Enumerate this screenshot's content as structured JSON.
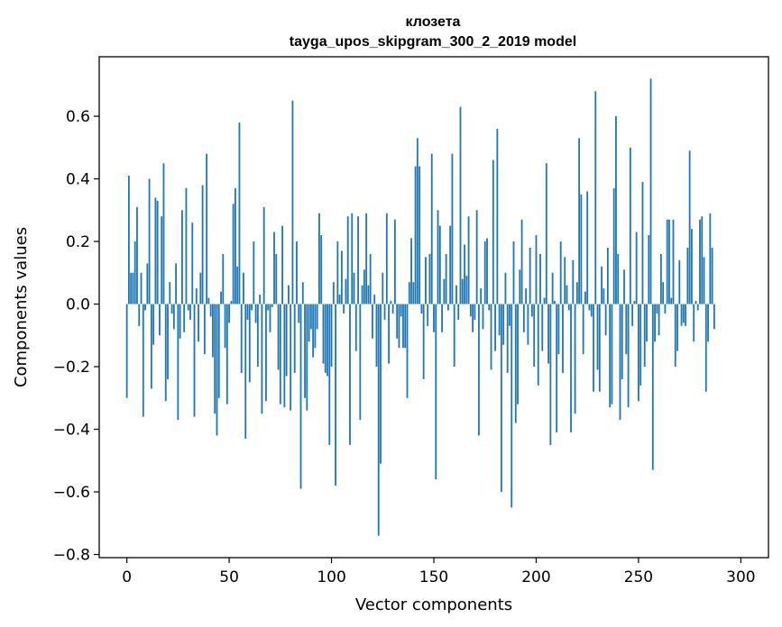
{
  "chart_data": {
    "type": "bar",
    "title": "клозета",
    "subtitle": "tayga_upos_skipgram_300_2_2019 model",
    "xlabel": "Vector components",
    "ylabel": "Components values",
    "xlim": [
      -13.5,
      313.5
    ],
    "ylim": [
      -0.81,
      0.79
    ],
    "xticks": [
      0,
      50,
      100,
      150,
      200,
      250,
      300
    ],
    "yticks": [
      -0.8,
      -0.6,
      -0.4,
      -0.2,
      0.0,
      0.2,
      0.4,
      0.6
    ],
    "ytick_labels": [
      "−0.8",
      "−0.6",
      "−0.4",
      "−0.2",
      "0.0",
      "0.2",
      "0.4",
      "0.6"
    ],
    "xtick_labels": [
      "0",
      "50",
      "100",
      "150",
      "200",
      "250",
      "300"
    ],
    "bar_color": "#1f77b4",
    "grid": false,
    "values": [
      -0.3,
      0.41,
      0.1,
      0.1,
      0.2,
      0.31,
      -0.07,
      0.1,
      -0.36,
      -0.02,
      0.13,
      0.4,
      -0.27,
      -0.13,
      0.34,
      0.33,
      -0.1,
      0.28,
      0.45,
      -0.31,
      -0.24,
      0.07,
      -0.03,
      -0.08,
      0.13,
      -0.37,
      -0.11,
      0.3,
      -0.09,
      0.37,
      -0.02,
      -0.05,
      0.26,
      -0.36,
      0.05,
      -0.12,
      0.1,
      0.38,
      -0.16,
      0.48,
      0.02,
      -0.04,
      -0.17,
      -0.35,
      -0.42,
      -0.3,
      0.04,
      0.16,
      -0.14,
      -0.32,
      -0.06,
      0.01,
      0.32,
      0.37,
      0.12,
      0.58,
      -0.22,
      0.1,
      -0.43,
      -0.05,
      -0.25,
      -0.02,
      0.2,
      -0.06,
      -0.2,
      0.03,
      -0.35,
      0.31,
      -0.31,
      -0.02,
      -0.09,
      -0.01,
      0.23,
      0.16,
      -0.21,
      -0.32,
      0.25,
      -0.33,
      -0.23,
      0.06,
      -0.34,
      0.65,
      -0.22,
      0.2,
      -0.06,
      -0.59,
      0.07,
      -0.3,
      -0.34,
      -0.12,
      -0.08,
      -0.17,
      -0.14,
      -0.08,
      0.29,
      0.22,
      -0.19,
      -0.22,
      -0.23,
      -0.45,
      -0.2,
      0.07,
      -0.58,
      0.2,
      0.03,
      0.17,
      -0.03,
      0.08,
      0.28,
      -0.45,
      0.29,
      0.1,
      -0.15,
      0.28,
      -0.37,
      0.06,
      0.11,
      0.29,
      0.06,
      0.16,
      -0.11,
      0.03,
      -0.2,
      -0.74,
      -0.51,
      0.1,
      -0.05,
      0.29,
      -0.19,
      0.01,
      -0.03,
      0.27,
      -0.11,
      -0.14,
      -0.04,
      -0.14,
      -0.14,
      -0.3,
      0.07,
      0.21,
      0.07,
      0.44,
      0.53,
      0.44,
      -0.03,
      -0.24,
      0.15,
      -0.07,
      0.16,
      0.48,
      -0.09,
      -0.56,
      0.3,
      0.25,
      -0.09,
      0.08,
      0.16,
      -0.02,
      0.25,
      0.48,
      -0.2,
      0.06,
      -0.05,
      0.63,
      0.08,
      0.19,
      0.09,
      0.28,
      -0.04,
      -0.09,
      -0.05,
      0.3,
      -0.42,
      0.05,
      -0.08,
      0.2,
      0.21,
      -0.02,
      -0.21,
      0.46,
      -0.15,
      0.56,
      -0.1,
      -0.6,
      -0.13,
      0.1,
      -0.22,
      -0.07,
      -0.65,
      0.2,
      -0.38,
      -0.32,
      0.11,
      0.27,
      -0.09,
      0.05,
      -0.13,
      0.18,
      -0.04,
      -0.2,
      0.22,
      -0.26,
      0.16,
      -0.15,
      0.02,
      0.45,
      -0.19,
      -0.45,
      0.1,
      0.01,
      -0.41,
      -0.16,
      0.2,
      -0.22,
      0.15,
      0.06,
      -0.02,
      -0.41,
      0.14,
      -0.35,
      0.07,
      0.53,
      0.35,
      -0.16,
      0.04,
      0.36,
      -0.02,
      -0.04,
      -0.28,
      0.68,
      -0.21,
      -0.28,
      0.12,
      0.05,
      -0.1,
      0.18,
      -0.33,
      -0.32,
      0.37,
      0.6,
      0.16,
      -0.37,
      -0.24,
      0.11,
      -0.16,
      -0.33,
      0.5,
      -0.07,
      0.01,
      0.23,
      -0.31,
      -0.26,
      0.39,
      -0.2,
      -0.12,
      0.22,
      0.72,
      -0.53,
      -0.12,
      -0.03,
      -0.1,
      0.16,
      0.07,
      -0.03,
      0.27,
      0.27,
      0.02,
      0.27,
      -0.2,
      -0.15,
      0.14,
      -0.07,
      -0.06,
      -0.07,
      0.18,
      0.49,
      0.24,
      -0.12,
      0.01,
      -0.02,
      0.27,
      0.28,
      0.15,
      -0.28,
      -0.12,
      0.29,
      0.18,
      -0.08
    ]
  }
}
